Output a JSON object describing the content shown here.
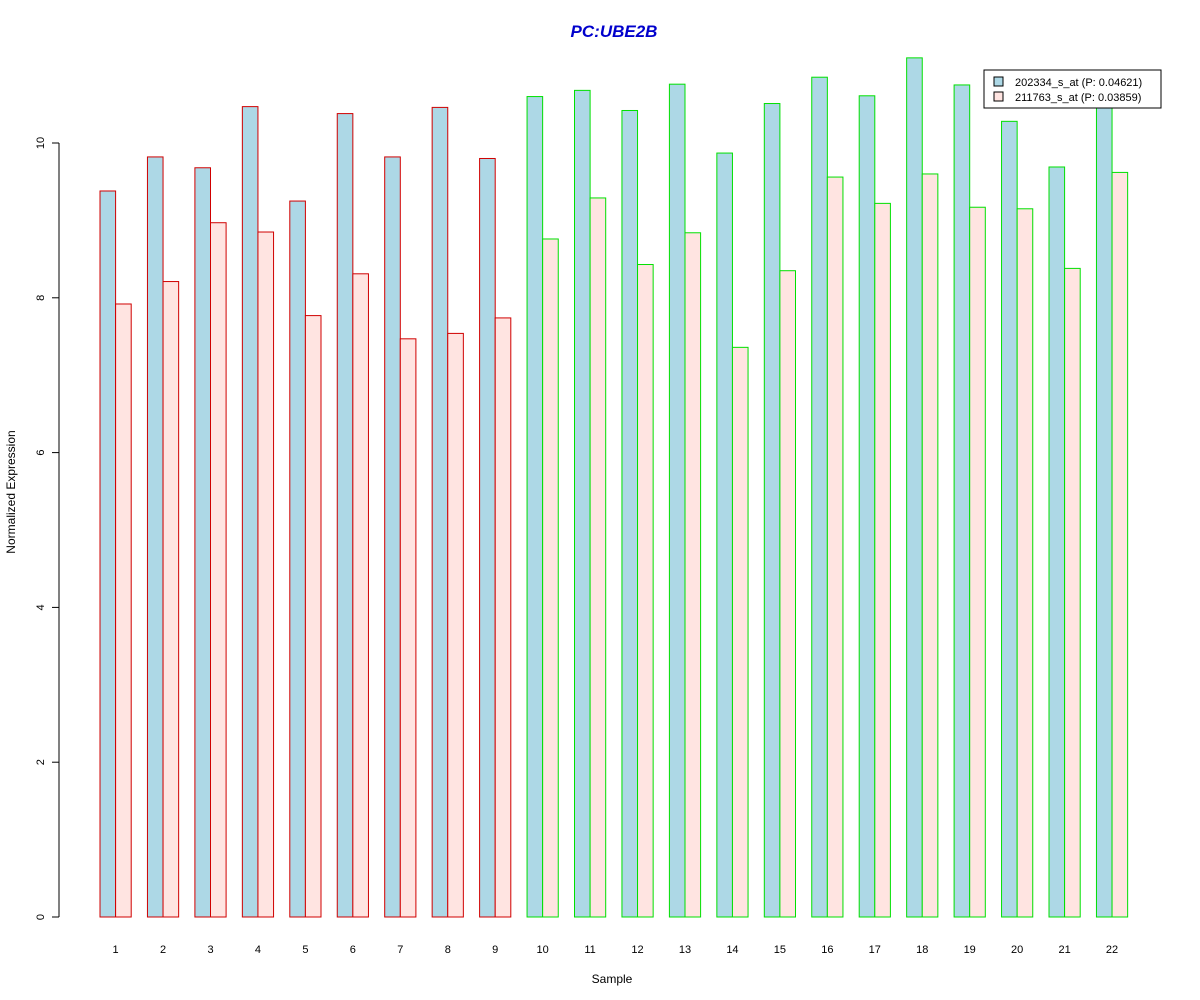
{
  "chart_data": {
    "type": "bar",
    "title": "PC:UBE2B",
    "xlabel": "Sample",
    "ylabel": "Normalized Expression",
    "ylim": [
      0,
      11.2
    ],
    "yticks": [
      0,
      2,
      4,
      6,
      8,
      10
    ],
    "grid": false,
    "legend_position": "top-right",
    "categories": [
      "1",
      "2",
      "3",
      "4",
      "5",
      "6",
      "7",
      "8",
      "9",
      "10",
      "11",
      "12",
      "13",
      "14",
      "15",
      "16",
      "17",
      "18",
      "19",
      "20",
      "21",
      "22"
    ],
    "groups": [
      {
        "samples": [
          1,
          2,
          3,
          4,
          5,
          6,
          7,
          8,
          9
        ],
        "border_color": "#d00000"
      },
      {
        "samples": [
          10,
          11,
          12,
          13,
          14,
          15,
          16,
          17,
          18,
          19,
          20,
          21,
          22
        ],
        "border_color": "#00e000"
      }
    ],
    "series": [
      {
        "name": "202334_s_at (P: 0.04621)",
        "fill_color": "#add8e6",
        "values": [
          9.38,
          9.82,
          9.68,
          10.47,
          9.25,
          10.38,
          9.82,
          10.46,
          9.8,
          10.6,
          10.68,
          10.42,
          10.76,
          9.87,
          10.51,
          10.85,
          10.61,
          11.1,
          10.75,
          10.28,
          9.69,
          10.48
        ]
      },
      {
        "name": "211763_s_at (P: 0.03859)",
        "fill_color": "#ffe4e1",
        "values": [
          7.92,
          8.21,
          8.97,
          8.85,
          7.77,
          8.31,
          7.47,
          7.54,
          7.74,
          8.76,
          9.29,
          8.43,
          8.84,
          7.36,
          8.35,
          9.56,
          9.22,
          9.6,
          9.17,
          9.15,
          8.38,
          9.62
        ]
      }
    ]
  },
  "colors": {
    "title": "#0000cc",
    "axis": "#000000",
    "legend_border": "#000000"
  }
}
